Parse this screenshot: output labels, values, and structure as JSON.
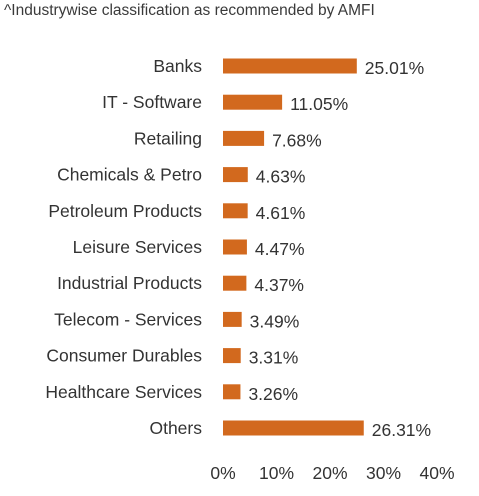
{
  "note": "^Industrywise classification as recommended by AMFI",
  "chart_data": {
    "type": "bar",
    "orientation": "horizontal",
    "title": "",
    "xlabel": "",
    "ylabel": "",
    "categories": [
      "Banks",
      "IT - Software",
      "Retailing",
      "Chemicals & Petro",
      "Petroleum Products",
      "Leisure Services",
      "Industrial Products",
      "Telecom - Services",
      "Consumer Durables",
      "Healthcare Services",
      "Others"
    ],
    "values": [
      25.01,
      11.05,
      7.68,
      4.63,
      4.61,
      4.47,
      4.37,
      3.49,
      3.31,
      3.26,
      26.31
    ],
    "value_labels": [
      "25.01%",
      "11.05%",
      "7.68%",
      "4.63%",
      "4.61%",
      "4.47%",
      "4.37%",
      "3.49%",
      "3.31%",
      "3.26%",
      "26.31%"
    ],
    "xlim": [
      0,
      40
    ],
    "xticks": [
      0,
      10,
      20,
      30,
      40
    ],
    "xtick_labels": [
      "0%",
      "10%",
      "20%",
      "30%",
      "40%"
    ],
    "grid": false,
    "legend": "none",
    "bar_color": "#d2691e"
  }
}
